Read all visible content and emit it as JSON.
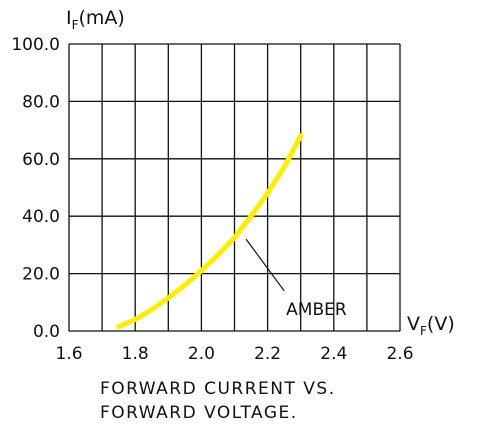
{
  "chart_data": {
    "type": "line",
    "y_axis_label": {
      "main": "I",
      "subscript": "F",
      "unit": "(mA)"
    },
    "x_axis_label": {
      "main": "V",
      "subscript": "F",
      "unit": "(V)"
    },
    "xlim": [
      1.6,
      2.6
    ],
    "ylim": [
      0,
      100
    ],
    "x_ticks": [
      "1.6",
      "1.8",
      "2.0",
      "2.2",
      "2.4",
      "2.6"
    ],
    "y_ticks": [
      "0.0",
      "20.0",
      "40.0",
      "60.0",
      "80.0",
      "100.0"
    ],
    "grid": true,
    "series": [
      {
        "name": "AMBER",
        "color": "#ffee00",
        "x": [
          1.75,
          1.8,
          1.85,
          1.9,
          1.95,
          2.0,
          2.05,
          2.1,
          2.15,
          2.2,
          2.25,
          2.3
        ],
        "y": [
          1.5,
          4.0,
          7.5,
          11.5,
          16.0,
          21.0,
          26.5,
          32.5,
          40.0,
          48.0,
          57.0,
          68.0
        ]
      }
    ],
    "caption": [
      "FORWARD CURRENT VS.",
      "FORWARD VOLTAGE."
    ]
  }
}
